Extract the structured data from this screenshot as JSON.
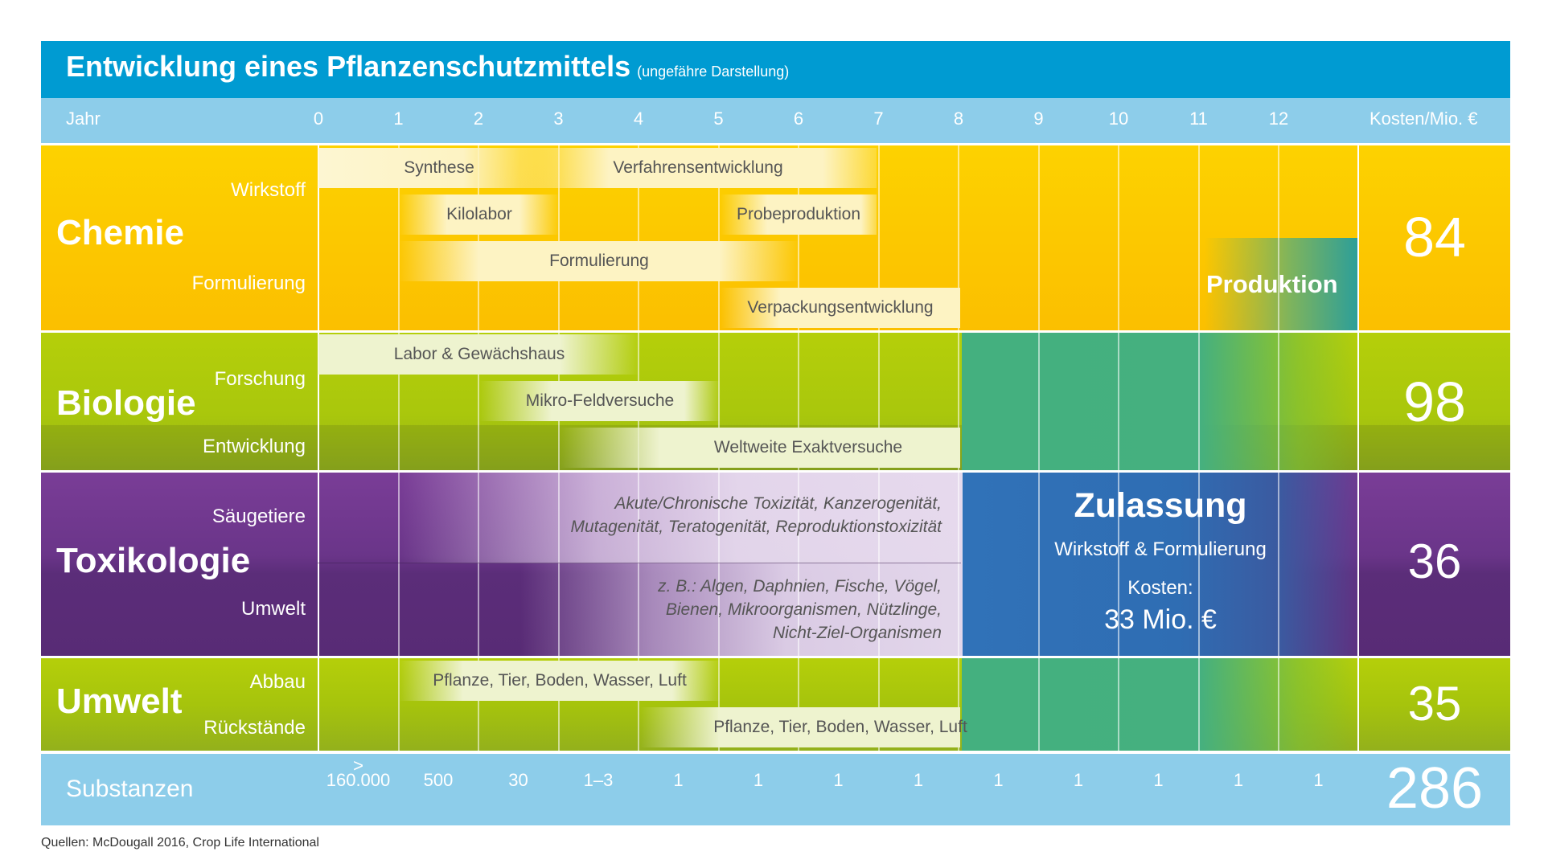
{
  "title": {
    "main": "Entwicklung eines Pflanzenschutzmittels",
    "sub": "(ungefähre Darstellung)"
  },
  "header": {
    "year_label": "Jahr",
    "cost_label": "Kosten/Mio. €",
    "years": [
      "0",
      "1",
      "2",
      "3",
      "4",
      "5",
      "6",
      "7",
      "8",
      "9",
      "10",
      "11",
      "12"
    ]
  },
  "chemie": {
    "title": "Chemie",
    "sub1": "Wirkstoff",
    "sub2": "Formulierung",
    "bars": [
      "Synthese",
      "Verfahrensentwicklung",
      "Kilolabor",
      "Probeproduktion",
      "Formulierung",
      "Verpackungsentwicklung"
    ],
    "produktion": "Produktion",
    "cost": "84"
  },
  "biologie": {
    "title": "Biologie",
    "sub1": "Forschung",
    "sub2": "Entwicklung",
    "bars": [
      "Labor & Gewächshaus",
      "Mikro-Feldversuche",
      "Weltweite Exaktversuche"
    ],
    "cost": "98"
  },
  "toxikologie": {
    "title": "Toxikologie",
    "sub1": "Säugetiere",
    "sub2": "Umwelt",
    "text1_line1": "Akute/Chronische Toxizität, Kanzerogenität,",
    "text1_line2": "Mutagenität, Teratogenität, Reproduktionstoxizität",
    "text2_line1": "z. B.: Algen, Daphnien, Fische, Vögel,",
    "text2_line2": "Bienen, Mikroorganismen, Nützlinge,",
    "text2_line3": "Nicht-Ziel-Organismen",
    "cost": "36"
  },
  "zulassung": {
    "title": "Zulassung",
    "subtitle": "Wirkstoff & Formulierung",
    "cost_label": "Kosten:",
    "cost_value": "33 Mio. €"
  },
  "umwelt": {
    "title": "Umwelt",
    "sub1": "Abbau",
    "sub2": "Rückstände",
    "bars": [
      "Pflanze, Tier, Boden, Wasser, Luft",
      "Pflanze, Tier, Boden, Wasser, Luft"
    ],
    "cost": "35"
  },
  "substanzen": {
    "label": "Substanzen",
    "first_prefix": ">",
    "values": [
      "160.000",
      "500",
      "30",
      "1–3",
      "1",
      "1",
      "1",
      "1",
      "1",
      "1",
      "1",
      "1",
      "1"
    ],
    "total": "286"
  },
  "source": "Quellen: McDougall 2016, Crop Life International",
  "colors": {
    "title_blue": "#009bd2",
    "light_blue": "#8dcdea",
    "chemie_yellow": "#fcc200",
    "biologie_green": "#a6c40c",
    "toxikologie_purple": "#6a3589",
    "zulassung_teal": "#45b07f",
    "zulassung_blue": "#2e6fb5"
  }
}
